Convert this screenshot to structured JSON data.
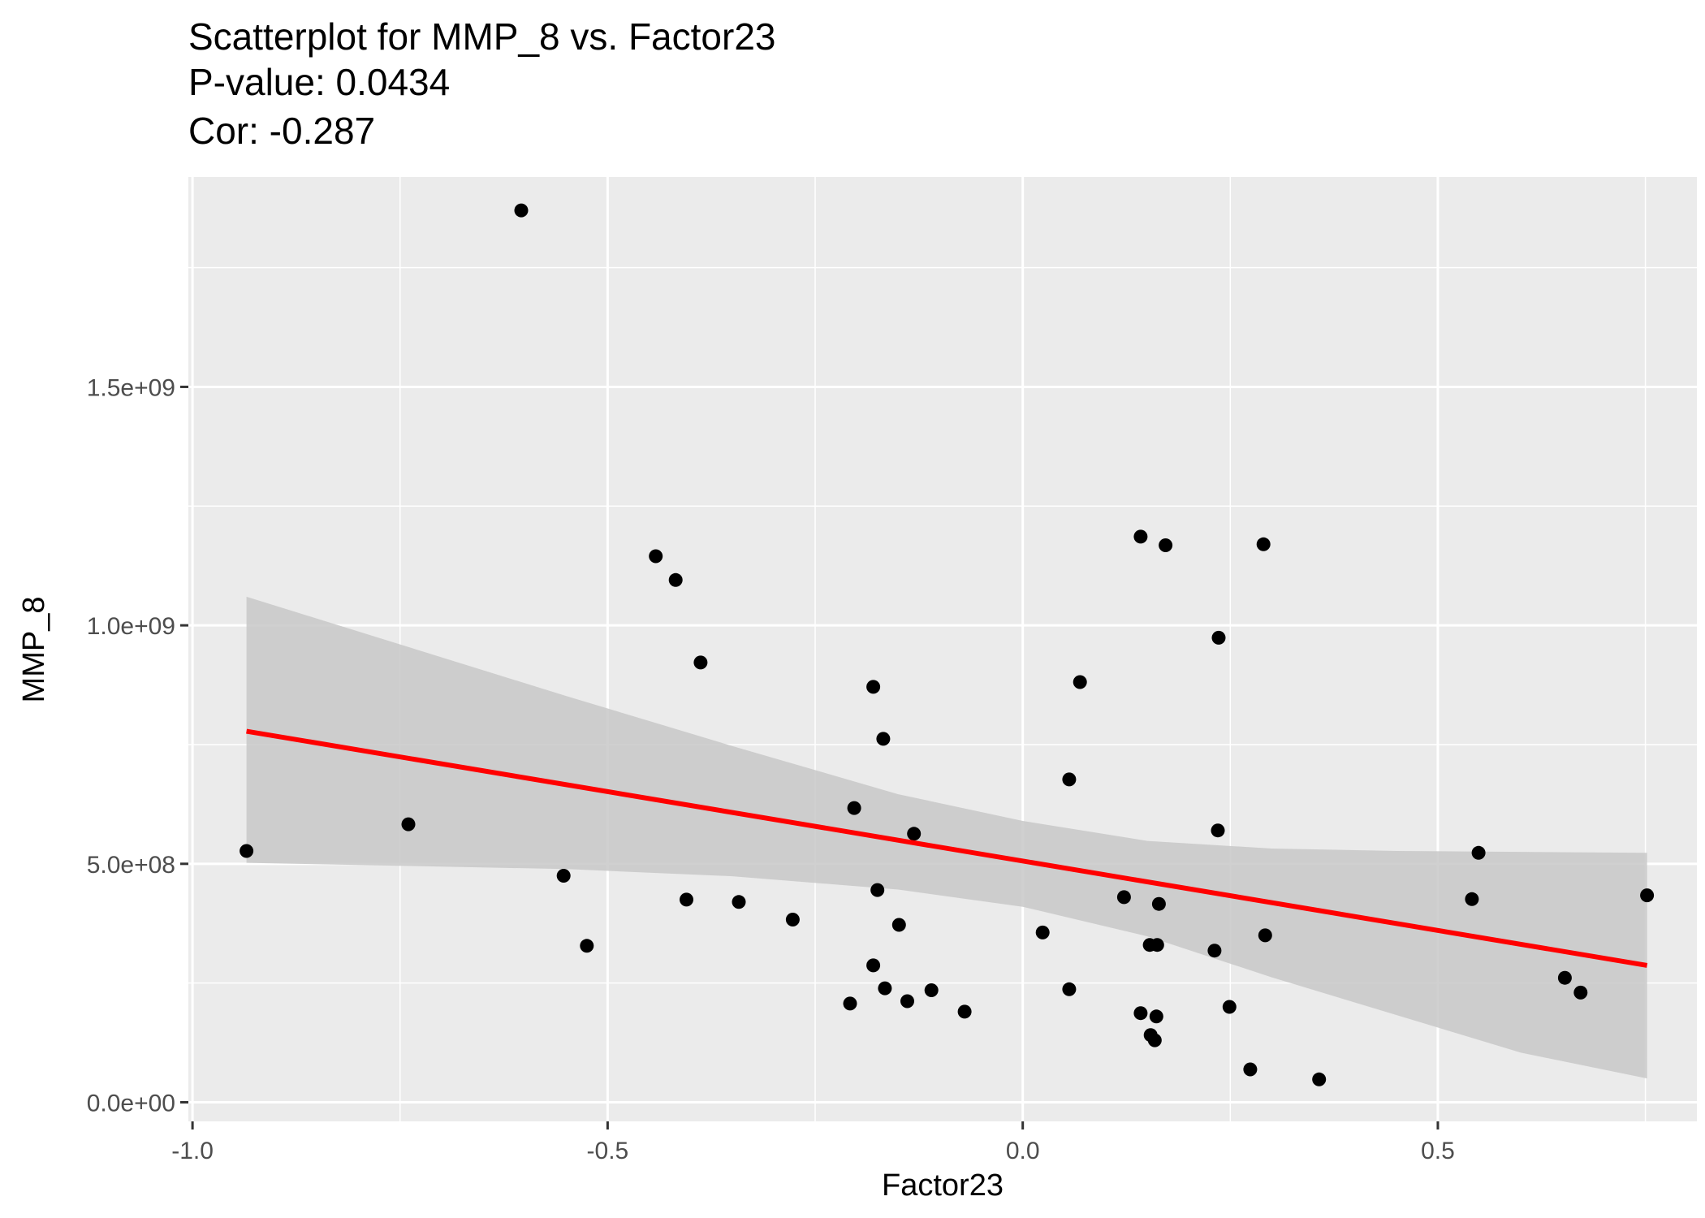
{
  "chart_data": {
    "type": "scatter",
    "title": "Scatterplot for MMP_8 vs. Factor23",
    "subtitle_lines": [
      "P-value: 0.0434",
      "Cor: -0.287"
    ],
    "xlabel": "Factor23",
    "ylabel": "MMP_8",
    "xlim": [
      -1.005,
      0.812
    ],
    "ylim": [
      -40000000,
      1940000000
    ],
    "x_ticks": [
      -1.0,
      -0.5,
      0.0,
      0.5
    ],
    "x_tick_labels": [
      "-1.0",
      "-0.5",
      "0.0",
      "0.5"
    ],
    "y_ticks": [
      0,
      500000000,
      1000000000,
      1500000000
    ],
    "y_tick_labels": [
      "0.0e+00",
      "5.0e+08",
      "1.0e+09",
      "1.5e+09"
    ],
    "grid": true,
    "colors": {
      "panel_background": "#ebebeb",
      "grid": "#ffffff",
      "points": "#000000",
      "fit_line": "#ff0000",
      "confidence_band": "#c8c8c8"
    },
    "points": [
      {
        "x": -0.935,
        "y": 527000000
      },
      {
        "x": -0.74,
        "y": 583000000
      },
      {
        "x": -0.604,
        "y": 1870000000
      },
      {
        "x": -0.553,
        "y": 475000000
      },
      {
        "x": -0.525,
        "y": 328000000
      },
      {
        "x": -0.442,
        "y": 1145000000
      },
      {
        "x": -0.418,
        "y": 1095000000
      },
      {
        "x": -0.405,
        "y": 425000000
      },
      {
        "x": -0.388,
        "y": 922000000
      },
      {
        "x": -0.342,
        "y": 420000000
      },
      {
        "x": -0.277,
        "y": 383000000
      },
      {
        "x": -0.208,
        "y": 207000000
      },
      {
        "x": -0.203,
        "y": 617000000
      },
      {
        "x": -0.18,
        "y": 871000000
      },
      {
        "x": -0.18,
        "y": 287000000
      },
      {
        "x": -0.175,
        "y": 445000000
      },
      {
        "x": -0.168,
        "y": 762000000
      },
      {
        "x": -0.166,
        "y": 239000000
      },
      {
        "x": -0.149,
        "y": 372000000
      },
      {
        "x": -0.139,
        "y": 212000000
      },
      {
        "x": -0.131,
        "y": 563000000
      },
      {
        "x": -0.11,
        "y": 235000000
      },
      {
        "x": -0.07,
        "y": 190000000
      },
      {
        "x": 0.024,
        "y": 356000000
      },
      {
        "x": 0.056,
        "y": 677000000
      },
      {
        "x": 0.056,
        "y": 237000000
      },
      {
        "x": 0.069,
        "y": 881000000
      },
      {
        "x": 0.122,
        "y": 430000000
      },
      {
        "x": 0.142,
        "y": 1186000000
      },
      {
        "x": 0.142,
        "y": 187000000
      },
      {
        "x": 0.153,
        "y": 330000000
      },
      {
        "x": 0.154,
        "y": 141000000
      },
      {
        "x": 0.159,
        "y": 130000000
      },
      {
        "x": 0.161,
        "y": 180000000
      },
      {
        "x": 0.162,
        "y": 330000000
      },
      {
        "x": 0.164,
        "y": 416000000
      },
      {
        "x": 0.172,
        "y": 1168000000
      },
      {
        "x": 0.231,
        "y": 318000000
      },
      {
        "x": 0.235,
        "y": 570000000
      },
      {
        "x": 0.236,
        "y": 974000000
      },
      {
        "x": 0.249,
        "y": 200000000
      },
      {
        "x": 0.274,
        "y": 69000000
      },
      {
        "x": 0.29,
        "y": 1170000000
      },
      {
        "x": 0.292,
        "y": 350000000
      },
      {
        "x": 0.357,
        "y": 48000000
      },
      {
        "x": 0.541,
        "y": 426000000
      },
      {
        "x": 0.549,
        "y": 523000000
      },
      {
        "x": 0.653,
        "y": 261000000
      },
      {
        "x": 0.672,
        "y": 230000000
      },
      {
        "x": 0.752,
        "y": 434000000
      }
    ],
    "fit_line": {
      "x": [
        -0.935,
        0.752
      ],
      "y": [
        778000000,
        287000000
      ]
    },
    "confidence_band": {
      "x": [
        -0.935,
        -0.75,
        -0.55,
        -0.35,
        -0.15,
        0.0,
        0.15,
        0.3,
        0.45,
        0.6,
        0.752
      ],
      "upper": [
        1060000000,
        960000000,
        852000000,
        747000000,
        646000000,
        590000000,
        548000000,
        532000000,
        527000000,
        525000000,
        523000000
      ],
      "lower": [
        502000000,
        496000000,
        489000000,
        474000000,
        446000000,
        410000000,
        348000000,
        262000000,
        183000000,
        104000000,
        50000000
      ]
    }
  }
}
